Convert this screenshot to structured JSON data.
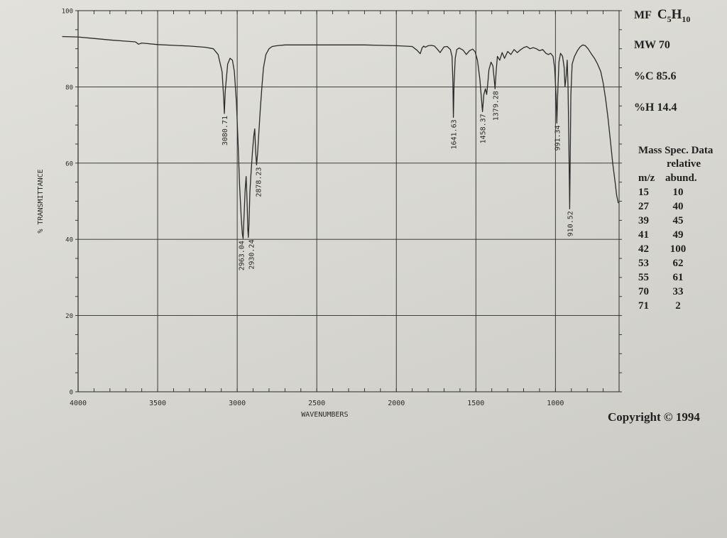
{
  "info": {
    "mf_label": "MF",
    "mf_formula_c": "C",
    "mf_formula_c_count": "5",
    "mf_formula_h": "H",
    "mf_formula_h_count": "10",
    "mw": "MW 70",
    "pct_c": "%C 85.6",
    "pct_h": "%H 14.4"
  },
  "mass_spec": {
    "title": "Mass Spec. Data",
    "relative_header": "relative",
    "mz_header": "m/z",
    "abund_header": "abund.",
    "rows": [
      {
        "mz": "15",
        "abund": "10"
      },
      {
        "mz": "27",
        "abund": "40"
      },
      {
        "mz": "39",
        "abund": "45"
      },
      {
        "mz": "41",
        "abund": "49"
      },
      {
        "mz": "42",
        "abund": "100"
      },
      {
        "mz": "53",
        "abund": "62"
      },
      {
        "mz": "55",
        "abund": "61"
      },
      {
        "mz": "70",
        "abund": "33"
      },
      {
        "mz": "71",
        "abund": "2"
      }
    ]
  },
  "copyright": "Copyright © 1994",
  "chart_data": {
    "type": "line",
    "title": "",
    "xlabel": "WAVENUMBERS",
    "ylabel": "% TRANSMITTANCE",
    "xlim": [
      4000,
      600
    ],
    "ylim": [
      0,
      100
    ],
    "x_reversed": true,
    "x_ticks": [
      4000,
      3500,
      3000,
      2500,
      2000,
      1500,
      1000
    ],
    "x_tick_labels": [
      "4000",
      "3500",
      "3000",
      "2500",
      "2000",
      "1500",
      "1000"
    ],
    "y_ticks": [
      0,
      20,
      40,
      60,
      80,
      100
    ],
    "y_tick_labels": [
      "0",
      "20",
      "40",
      "60",
      "80",
      "100"
    ],
    "grid": true,
    "line_color": "#2a2a2a",
    "series": [
      {
        "x": [
          4100,
          4000,
          3900,
          3800,
          3700,
          3640,
          3620,
          3600,
          3500,
          3400,
          3300,
          3200,
          3150,
          3120,
          3095,
          3085,
          3080.71,
          3075,
          3060,
          3045,
          3030,
          3018,
          3005,
          2995,
          2985,
          2975,
          2968,
          2963.04,
          2958,
          2950,
          2944,
          2938,
          2933,
          2930.24,
          2926,
          2920,
          2912,
          2904,
          2896,
          2890,
          2884,
          2878.23,
          2872,
          2864,
          2855,
          2845,
          2835,
          2820,
          2800,
          2780,
          2750,
          2700,
          2600,
          2500,
          2400,
          2300,
          2200,
          2100,
          2000,
          1900,
          1870,
          1850,
          1838,
          1828,
          1818,
          1800,
          1780,
          1760,
          1740,
          1725,
          1712,
          1700,
          1680,
          1660,
          1650,
          1645,
          1641.63,
          1637,
          1630,
          1620,
          1605,
          1580,
          1560,
          1540,
          1520,
          1505,
          1490,
          1475,
          1465,
          1458.37,
          1450,
          1440,
          1432,
          1425,
          1418,
          1405,
          1393,
          1385,
          1379.28,
          1373,
          1365,
          1350,
          1335,
          1320,
          1300,
          1280,
          1260,
          1240,
          1220,
          1200,
          1180,
          1160,
          1140,
          1120,
          1100,
          1080,
          1060,
          1045,
          1030,
          1015,
          1005,
          996,
          991.34,
          986,
          978,
          968,
          955,
          945,
          940,
          932,
          926,
          921,
          916,
          912,
          910.52,
          908,
          903,
          895,
          880,
          862,
          845,
          828,
          812,
          795,
          775,
          755,
          735,
          715,
          700,
          685,
          670,
          655,
          640,
          625,
          615,
          605
        ],
        "y": [
          93.2,
          93.1,
          92.7,
          92.3,
          92.0,
          91.8,
          91.2,
          91.5,
          91.1,
          90.9,
          90.7,
          90.4,
          90.0,
          88.5,
          84.0,
          77.0,
          73.0,
          79.0,
          86.0,
          87.5,
          87.0,
          84.0,
          76.0,
          66.0,
          54.0,
          46.0,
          41.5,
          40.2,
          45.0,
          53.0,
          56.5,
          50.0,
          42.5,
          40.5,
          44.0,
          52.5,
          58.0,
          63.0,
          67.0,
          69.0,
          63.0,
          59.5,
          62.5,
          68.0,
          74.0,
          80.0,
          85.0,
          88.5,
          90.0,
          90.6,
          90.8,
          91.0,
          91.0,
          91.0,
          91.0,
          91.0,
          91.0,
          90.9,
          90.8,
          90.6,
          89.6,
          88.7,
          90.2,
          90.7,
          90.4,
          90.8,
          90.9,
          90.7,
          89.8,
          89.0,
          89.8,
          90.5,
          90.6,
          89.8,
          88.0,
          82.0,
          72.0,
          81.0,
          87.5,
          89.8,
          90.2,
          89.6,
          88.5,
          89.5,
          89.9,
          89.2,
          87.0,
          82.0,
          77.0,
          73.5,
          78.0,
          79.5,
          78.0,
          81.0,
          84.5,
          86.5,
          85.5,
          82.0,
          79.5,
          84.0,
          88.0,
          87.0,
          89.0,
          87.5,
          89.3,
          88.5,
          89.8,
          89.0,
          89.7,
          90.3,
          90.6,
          90.0,
          90.3,
          90.0,
          89.5,
          89.8,
          88.8,
          88.5,
          88.8,
          88.0,
          85.0,
          78.0,
          70.5,
          78.0,
          86.5,
          88.8,
          88.0,
          85.0,
          80.0,
          83.0,
          87.0,
          80.0,
          66.0,
          53.0,
          48.0,
          58.0,
          78.0,
          86.0,
          88.0,
          89.5,
          90.5,
          91.0,
          90.8,
          90.0,
          88.7,
          87.5,
          86.0,
          84.0,
          81.0,
          77.0,
          72.0,
          66.0,
          60.0,
          55.0,
          51.5,
          49.5
        ]
      }
    ],
    "peak_labels": [
      {
        "x": 3080.71,
        "label": "3080.71"
      },
      {
        "x": 2963.04,
        "label": "2963.04"
      },
      {
        "x": 2930.24,
        "label": "2930.24"
      },
      {
        "x": 2878.23,
        "label": "2878.23"
      },
      {
        "x": 1641.63,
        "label": "1641.63"
      },
      {
        "x": 1458.37,
        "label": "1458.37"
      },
      {
        "x": 1379.28,
        "label": "1379.28"
      },
      {
        "x": 991.34,
        "label": "991.34"
      },
      {
        "x": 910.52,
        "label": "910.52"
      }
    ]
  }
}
